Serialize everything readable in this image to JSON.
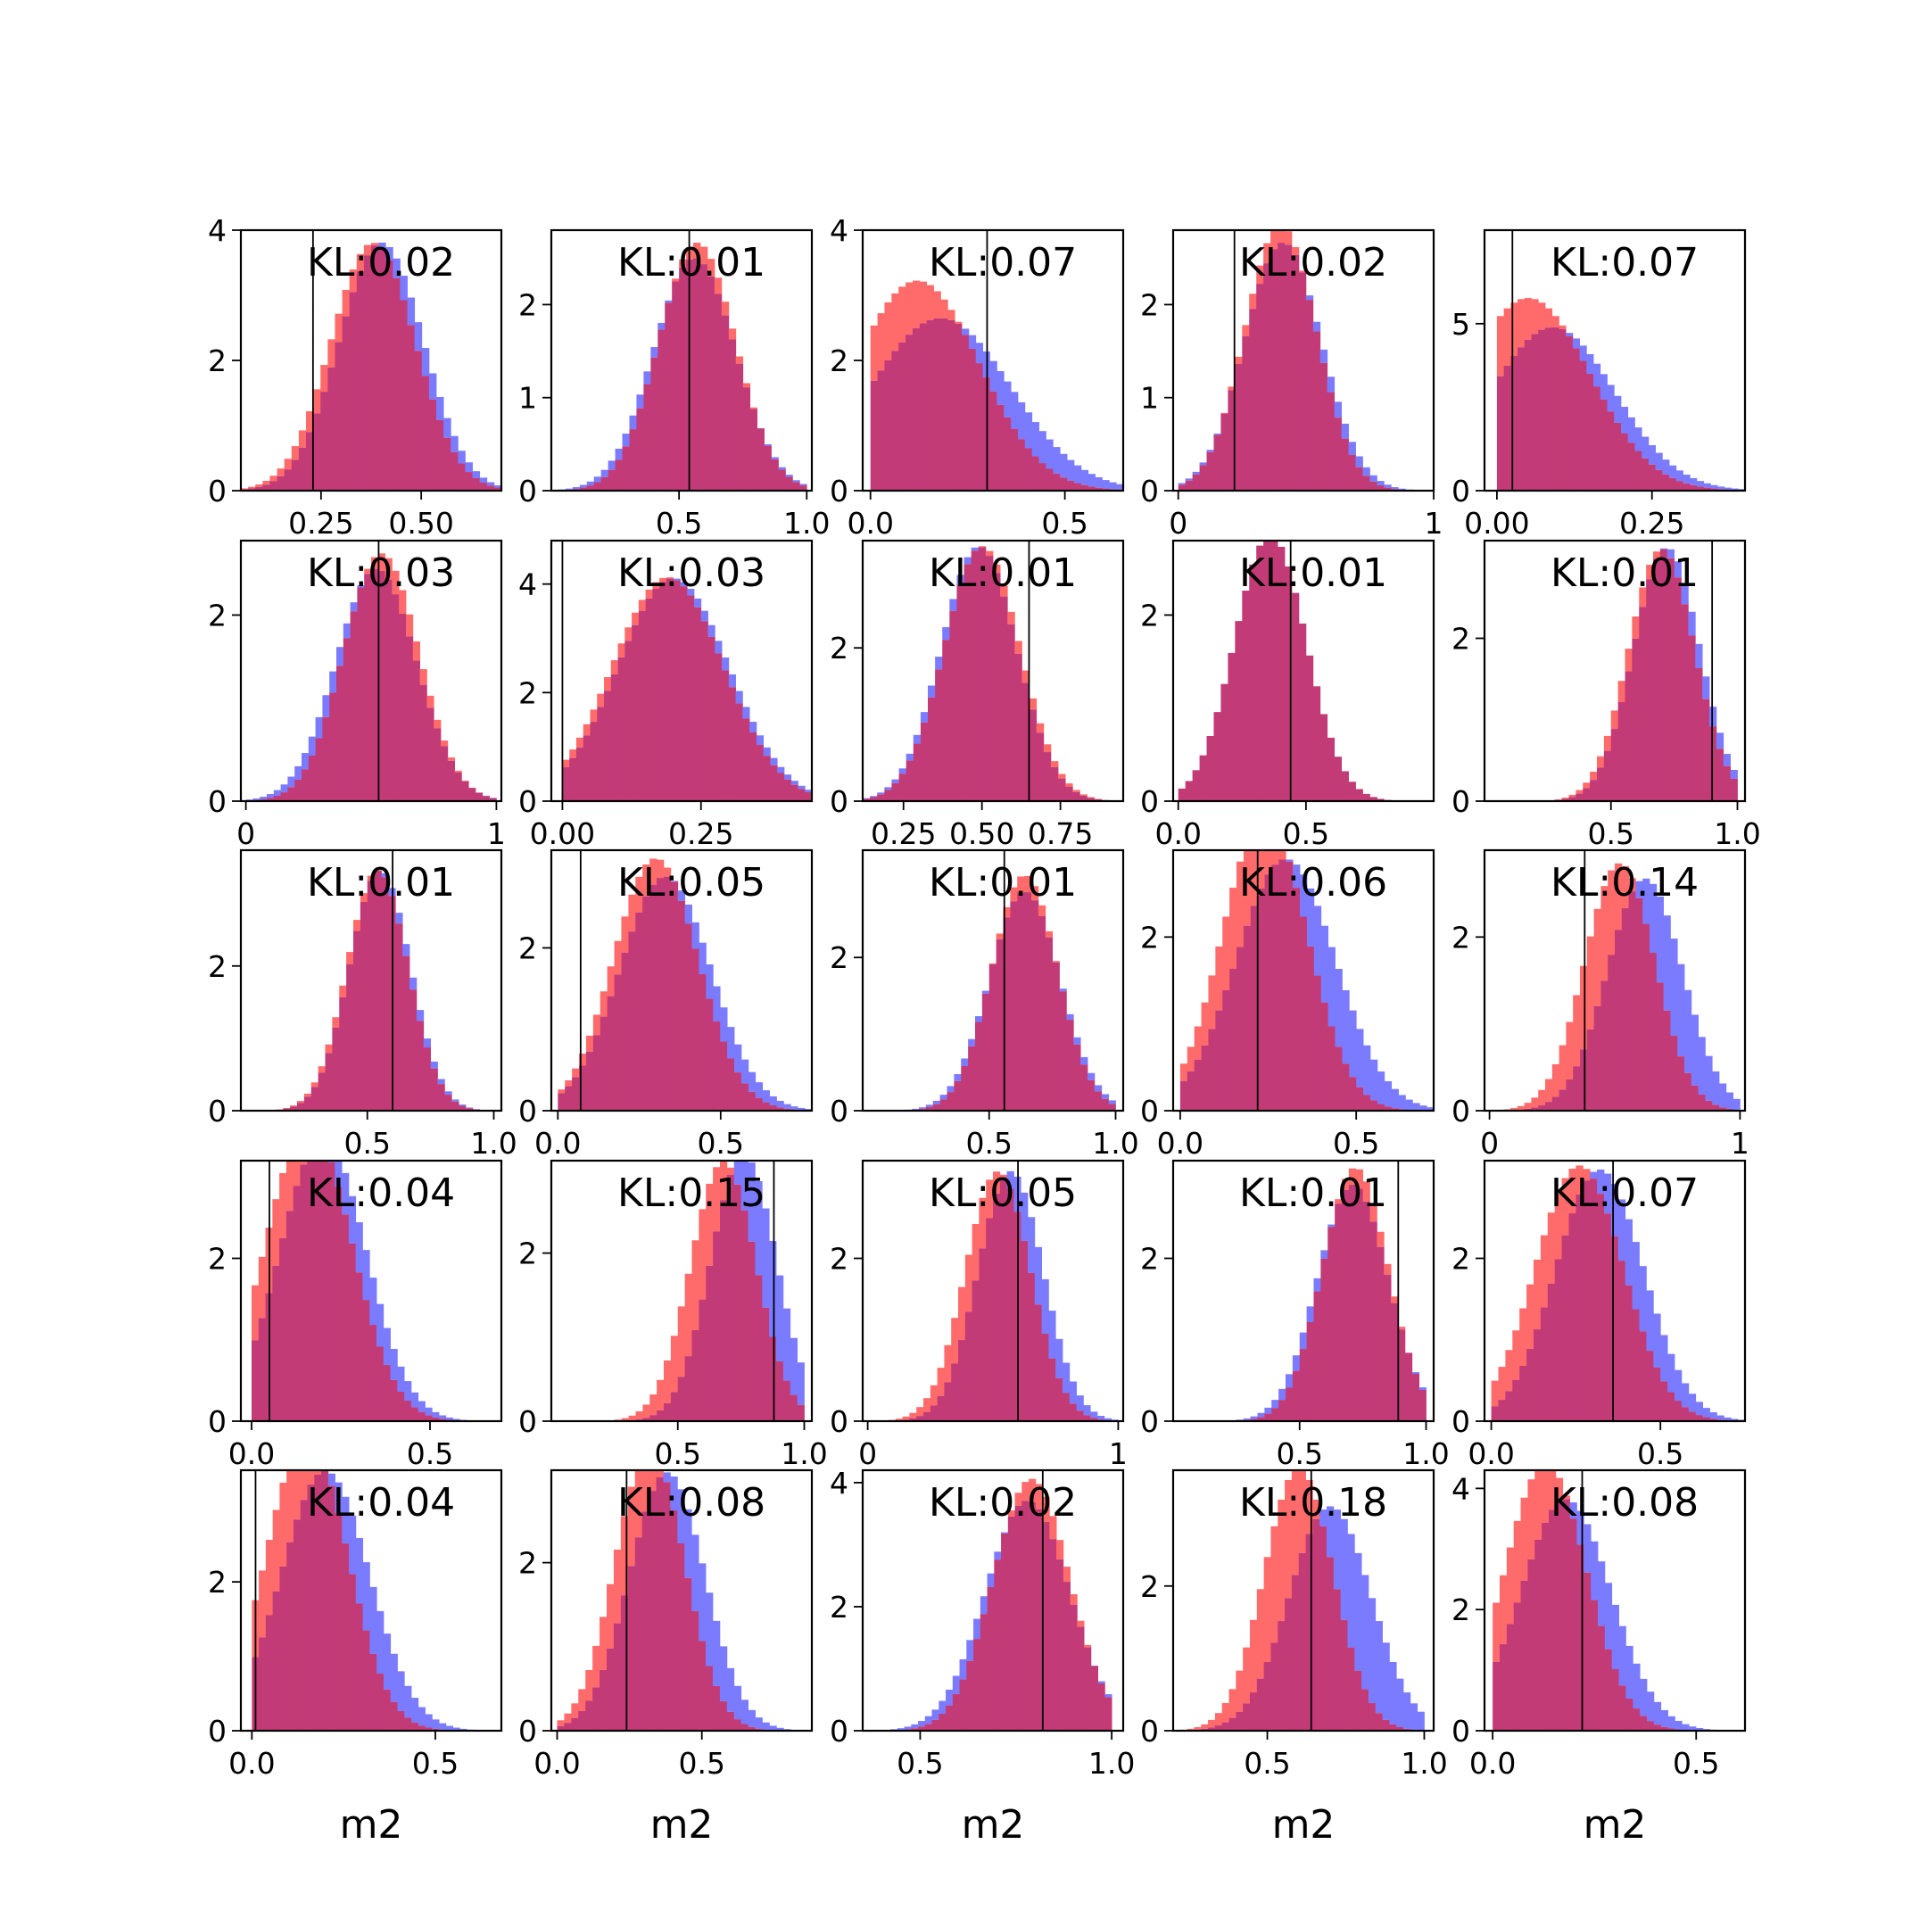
{
  "figure": {
    "background": "#ffffff",
    "colors": {
      "blue": "#7b7bff",
      "red": "#ff6b6b",
      "overlap": "#c23b77",
      "marker": "#000000"
    }
  },
  "chart_data": [
    {
      "type": "histogram",
      "kl_label": "KL:0.02",
      "xlim": [
        0.05,
        0.7
      ],
      "ylim": [
        0,
        4.0
      ],
      "xticks": [
        0.25,
        0.5
      ],
      "xtick_labels": [
        "0.25",
        "0.50"
      ],
      "yticks": [
        0,
        2,
        4
      ],
      "ytick_labels": [
        "0",
        "2",
        "4"
      ],
      "marker_x": 0.23,
      "dist_red": {
        "mean": 0.38,
        "sd": 0.105
      },
      "dist_blue": {
        "mean": 0.4,
        "sd": 0.105
      },
      "xlabel": ""
    },
    {
      "type": "histogram",
      "kl_label": "KL:0.01",
      "xlim": [
        0.0,
        1.02
      ],
      "ylim": [
        0,
        2.8
      ],
      "xticks": [
        0.5,
        1.0
      ],
      "xtick_labels": [
        "0.5",
        "1.0"
      ],
      "yticks": [
        0,
        1,
        2
      ],
      "ytick_labels": [
        "0",
        "1",
        "2"
      ],
      "marker_x": 0.54,
      "dist_red": {
        "mean": 0.57,
        "sd": 0.15
      },
      "dist_blue": {
        "mean": 0.56,
        "sd": 0.16
      },
      "xlabel": ""
    },
    {
      "type": "histogram",
      "kl_label": "KL:0.07",
      "xlim": [
        -0.02,
        0.65
      ],
      "ylim": [
        0,
        4.0
      ],
      "xticks": [
        0.0,
        0.5
      ],
      "xtick_labels": [
        "0.0",
        "0.5"
      ],
      "yticks": [
        0,
        2,
        4
      ],
      "ytick_labels": [
        "0",
        "2",
        "4"
      ],
      "marker_x": 0.3,
      "dist_red": {
        "mean": 0.12,
        "sd": 0.16
      },
      "dist_blue": {
        "mean": 0.18,
        "sd": 0.18
      },
      "xlabel": ""
    },
    {
      "type": "histogram",
      "kl_label": "KL:0.02",
      "xlim": [
        -0.02,
        1.0
      ],
      "ylim": [
        0,
        2.8
      ],
      "xticks": [
        0.0,
        1.0
      ],
      "xtick_labels": [
        "0",
        "1"
      ],
      "yticks": [
        0,
        1,
        2
      ],
      "ytick_labels": [
        "0",
        "1",
        "2"
      ],
      "marker_x": 0.22,
      "dist_red": {
        "mean": 0.4,
        "sd": 0.14
      },
      "dist_blue": {
        "mean": 0.41,
        "sd": 0.15
      },
      "xlabel": ""
    },
    {
      "type": "histogram",
      "kl_label": "KL:0.07",
      "xlim": [
        -0.02,
        0.4
      ],
      "ylim": [
        0,
        7.8
      ],
      "xticks": [
        0.0,
        0.25
      ],
      "xtick_labels": [
        "0.00",
        "0.25"
      ],
      "yticks": [
        0,
        5
      ],
      "ytick_labels": [
        "0",
        "5"
      ],
      "marker_x": 0.025,
      "dist_red": {
        "mean": 0.05,
        "sd": 0.1
      },
      "dist_blue": {
        "mean": 0.09,
        "sd": 0.1
      },
      "xlabel": ""
    },
    {
      "type": "histogram",
      "kl_label": "KL:0.03",
      "xlim": [
        -0.02,
        1.02
      ],
      "ylim": [
        0,
        2.8
      ],
      "xticks": [
        0,
        1
      ],
      "xtick_labels": [
        "0",
        "1"
      ],
      "yticks": [
        0,
        2
      ],
      "ytick_labels": [
        "0",
        "2"
      ],
      "marker_x": 0.53,
      "dist_red": {
        "mean": 0.54,
        "sd": 0.15
      },
      "dist_blue": {
        "mean": 0.52,
        "sd": 0.16
      },
      "xlabel": ""
    },
    {
      "type": "histogram",
      "kl_label": "KL:0.03",
      "xlim": [
        -0.02,
        0.45
      ],
      "ylim": [
        0,
        4.8
      ],
      "xticks": [
        0.0,
        0.25
      ],
      "xtick_labels": [
        "0.00",
        "0.25"
      ],
      "yticks": [
        0,
        2,
        4
      ],
      "ytick_labels": [
        "0",
        "2",
        "4"
      ],
      "marker_x": 0.0,
      "dist_red": {
        "mean": 0.19,
        "sd": 0.1
      },
      "dist_blue": {
        "mean": 0.2,
        "sd": 0.1
      },
      "xlabel": ""
    },
    {
      "type": "histogram",
      "kl_label": "KL:0.01",
      "xlim": [
        0.12,
        0.95
      ],
      "ylim": [
        0,
        3.4
      ],
      "xticks": [
        0.25,
        0.5,
        0.75
      ],
      "xtick_labels": [
        "0.25",
        "0.50",
        "0.75"
      ],
      "yticks": [
        0,
        2
      ],
      "ytick_labels": [
        "0",
        "2"
      ],
      "marker_x": 0.65,
      "dist_red": {
        "mean": 0.5,
        "sd": 0.12
      },
      "dist_blue": {
        "mean": 0.49,
        "sd": 0.12
      },
      "xlabel": ""
    },
    {
      "type": "histogram",
      "kl_label": "KL:0.01",
      "xlim": [
        -0.02,
        1.0
      ],
      "ylim": [
        0,
        2.8
      ],
      "xticks": [
        0.0,
        0.5
      ],
      "xtick_labels": [
        "0.0",
        "0.5"
      ],
      "yticks": [
        0,
        2
      ],
      "ytick_labels": [
        "0",
        "2"
      ],
      "marker_x": 0.44,
      "dist_red": {
        "mean": 0.36,
        "sd": 0.14
      },
      "dist_blue": {
        "mean": 0.36,
        "sd": 0.14
      },
      "xlabel": ""
    },
    {
      "type": "histogram",
      "kl_label": "KL:0.01",
      "xlim": [
        0.0,
        1.03
      ],
      "ylim": [
        0,
        3.2
      ],
      "xticks": [
        0.5,
        1.0
      ],
      "xtick_labels": [
        "0.5",
        "1.0"
      ],
      "yticks": [
        0,
        2
      ],
      "ytick_labels": [
        "0",
        "2"
      ],
      "marker_x": 0.9,
      "dist_red": {
        "mean": 0.7,
        "sd": 0.13
      },
      "dist_blue": {
        "mean": 0.72,
        "sd": 0.13
      },
      "xlabel": ""
    },
    {
      "type": "histogram",
      "kl_label": "KL:0.01",
      "xlim": [
        0.0,
        1.03
      ],
      "ylim": [
        0,
        3.6
      ],
      "xticks": [
        0.5,
        1.0
      ],
      "xtick_labels": [
        "0.5",
        "1.0"
      ],
      "yticks": [
        0,
        2
      ],
      "ytick_labels": [
        "0",
        "2"
      ],
      "marker_x": 0.6,
      "dist_red": {
        "mean": 0.54,
        "sd": 0.12
      },
      "dist_blue": {
        "mean": 0.55,
        "sd": 0.12
      },
      "xlabel": ""
    },
    {
      "type": "histogram",
      "kl_label": "KL:0.05",
      "xlim": [
        -0.02,
        0.78
      ],
      "ylim": [
        0,
        3.2
      ],
      "xticks": [
        0.0,
        0.5
      ],
      "xtick_labels": [
        "0.0",
        "0.5"
      ],
      "yticks": [
        0,
        2
      ],
      "ytick_labels": [
        "0",
        "2"
      ],
      "marker_x": 0.07,
      "dist_red": {
        "mean": 0.3,
        "sd": 0.13
      },
      "dist_blue": {
        "mean": 0.33,
        "sd": 0.14
      },
      "xlabel": ""
    },
    {
      "type": "histogram",
      "kl_label": "KL:0.01",
      "xlim": [
        0.0,
        1.03
      ],
      "ylim": [
        0,
        3.4
      ],
      "xticks": [
        0.5,
        1.0
      ],
      "xtick_labels": [
        "0.5",
        "1.0"
      ],
      "yticks": [
        0,
        2
      ],
      "ytick_labels": [
        "0",
        "2"
      ],
      "marker_x": 0.56,
      "dist_red": {
        "mean": 0.64,
        "sd": 0.13
      },
      "dist_blue": {
        "mean": 0.64,
        "sd": 0.14
      },
      "xlabel": ""
    },
    {
      "type": "histogram",
      "kl_label": "KL:0.06",
      "xlim": [
        -0.02,
        0.72
      ],
      "ylim": [
        0,
        3.0
      ],
      "xticks": [
        0.0,
        0.5
      ],
      "xtick_labels": [
        "0.0",
        "0.5"
      ],
      "yticks": [
        0,
        2
      ],
      "ytick_labels": [
        "0",
        "2"
      ],
      "marker_x": 0.22,
      "dist_red": {
        "mean": 0.24,
        "sd": 0.12
      },
      "dist_blue": {
        "mean": 0.3,
        "sd": 0.14
      },
      "xlabel": ""
    },
    {
      "type": "histogram",
      "kl_label": "KL:0.14",
      "xlim": [
        -0.02,
        1.02
      ],
      "ylim": [
        0,
        3.0
      ],
      "xticks": [
        0,
        1
      ],
      "xtick_labels": [
        "0",
        "1"
      ],
      "yticks": [
        0,
        2
      ],
      "ytick_labels": [
        "0",
        "2"
      ],
      "marker_x": 0.38,
      "dist_red": {
        "mean": 0.52,
        "sd": 0.14
      },
      "dist_blue": {
        "mean": 0.62,
        "sd": 0.15
      },
      "xlabel": ""
    },
    {
      "type": "histogram",
      "kl_label": "KL:0.04",
      "xlim": [
        -0.03,
        0.7
      ],
      "ylim": [
        0,
        3.2
      ],
      "xticks": [
        0.0,
        0.5
      ],
      "xtick_labels": [
        "0.0",
        "0.5"
      ],
      "yticks": [
        0,
        2
      ],
      "ytick_labels": [
        "0",
        "2"
      ],
      "marker_x": 0.05,
      "dist_red": {
        "mean": 0.16,
        "sd": 0.12
      },
      "dist_blue": {
        "mean": 0.2,
        "sd": 0.12
      },
      "xlabel": ""
    },
    {
      "type": "histogram",
      "kl_label": "KL:0.15",
      "xlim": [
        0.0,
        1.03
      ],
      "ylim": [
        0,
        3.1
      ],
      "xticks": [
        0.5,
        1.0
      ],
      "xtick_labels": [
        "0.5",
        "1.0"
      ],
      "yticks": [
        0,
        2
      ],
      "ytick_labels": [
        "0",
        "2"
      ],
      "marker_x": 0.88,
      "dist_red": {
        "mean": 0.68,
        "sd": 0.13
      },
      "dist_blue": {
        "mean": 0.76,
        "sd": 0.13
      },
      "xlabel": ""
    },
    {
      "type": "histogram",
      "kl_label": "KL:0.05",
      "xlim": [
        -0.02,
        1.02
      ],
      "ylim": [
        0,
        3.2
      ],
      "xticks": [
        0,
        1
      ],
      "xtick_labels": [
        "0",
        "1"
      ],
      "yticks": [
        0,
        2
      ],
      "ytick_labels": [
        "0",
        "2"
      ],
      "marker_x": 0.6,
      "dist_red": {
        "mean": 0.52,
        "sd": 0.13
      },
      "dist_blue": {
        "mean": 0.57,
        "sd": 0.13
      },
      "xlabel": ""
    },
    {
      "type": "histogram",
      "kl_label": "KL:0.01",
      "xlim": [
        0.0,
        1.03
      ],
      "ylim": [
        0,
        3.2
      ],
      "xticks": [
        0.5,
        1.0
      ],
      "xtick_labels": [
        "0.5",
        "1.0"
      ],
      "yticks": [
        0,
        2
      ],
      "ytick_labels": [
        "0",
        "2"
      ],
      "marker_x": 0.89,
      "dist_red": {
        "mean": 0.72,
        "sd": 0.13
      },
      "dist_blue": {
        "mean": 0.71,
        "sd": 0.14
      },
      "xlabel": ""
    },
    {
      "type": "histogram",
      "kl_label": "KL:0.07",
      "xlim": [
        -0.02,
        0.75
      ],
      "ylim": [
        0,
        3.2
      ],
      "xticks": [
        0.0,
        0.5
      ],
      "xtick_labels": [
        "0.0",
        "0.5"
      ],
      "yticks": [
        0,
        2
      ],
      "ytick_labels": [
        "0",
        "2"
      ],
      "marker_x": 0.36,
      "dist_red": {
        "mean": 0.26,
        "sd": 0.13
      },
      "dist_blue": {
        "mean": 0.32,
        "sd": 0.13
      },
      "xlabel": ""
    },
    {
      "type": "histogram",
      "kl_label": "KL:0.04",
      "xlim": [
        -0.03,
        0.68
      ],
      "ylim": [
        0,
        3.5
      ],
      "xticks": [
        0.0,
        0.5
      ],
      "xtick_labels": [
        "0.0",
        "0.5"
      ],
      "yticks": [
        0,
        2
      ],
      "ytick_labels": [
        "0",
        "2"
      ],
      "marker_x": 0.01,
      "dist_red": {
        "mean": 0.15,
        "sd": 0.11
      },
      "dist_blue": {
        "mean": 0.2,
        "sd": 0.12
      },
      "xlabel": "m2"
    },
    {
      "type": "histogram",
      "kl_label": "KL:0.08",
      "xlim": [
        -0.02,
        0.88
      ],
      "ylim": [
        0,
        3.1
      ],
      "xticks": [
        0.0,
        0.5
      ],
      "xtick_labels": [
        "0.0",
        "0.5"
      ],
      "yticks": [
        0,
        2
      ],
      "ytick_labels": [
        "0",
        "2"
      ],
      "marker_x": 0.24,
      "dist_red": {
        "mean": 0.32,
        "sd": 0.12
      },
      "dist_blue": {
        "mean": 0.38,
        "sd": 0.13
      },
      "xlabel": "m2"
    },
    {
      "type": "histogram",
      "kl_label": "KL:0.02",
      "xlim": [
        0.35,
        1.03
      ],
      "ylim": [
        0,
        4.2
      ],
      "xticks": [
        0.5,
        1.0
      ],
      "xtick_labels": [
        "0.5",
        "1.0"
      ],
      "yticks": [
        0,
        2,
        4
      ],
      "ytick_labels": [
        "0",
        "2",
        "4"
      ],
      "marker_x": 0.82,
      "dist_red": {
        "mean": 0.79,
        "sd": 0.1
      },
      "dist_blue": {
        "mean": 0.78,
        "sd": 0.11
      },
      "xlabel": "m2"
    },
    {
      "type": "histogram",
      "kl_label": "KL:0.18",
      "xlim": [
        0.2,
        1.03
      ],
      "ylim": [
        0,
        3.6
      ],
      "xticks": [
        0.5,
        1.0
      ],
      "xtick_labels": [
        "0.5",
        "1.0"
      ],
      "yticks": [
        0,
        2
      ],
      "ytick_labels": [
        "0",
        "2"
      ],
      "marker_x": 0.64,
      "dist_red": {
        "mean": 0.6,
        "sd": 0.11
      },
      "dist_blue": {
        "mean": 0.7,
        "sd": 0.13
      },
      "xlabel": "m2"
    },
    {
      "type": "histogram",
      "kl_label": "KL:0.08",
      "xlim": [
        -0.02,
        0.62
      ],
      "ylim": [
        0,
        4.3
      ],
      "xticks": [
        0.0,
        0.5
      ],
      "xtick_labels": [
        "0.0",
        "0.5"
      ],
      "yticks": [
        0,
        2,
        4
      ],
      "ytick_labels": [
        "0",
        "2",
        "4"
      ],
      "marker_x": 0.22,
      "dist_red": {
        "mean": 0.13,
        "sd": 0.1
      },
      "dist_blue": {
        "mean": 0.18,
        "sd": 0.11
      },
      "xlabel": "m2"
    }
  ]
}
